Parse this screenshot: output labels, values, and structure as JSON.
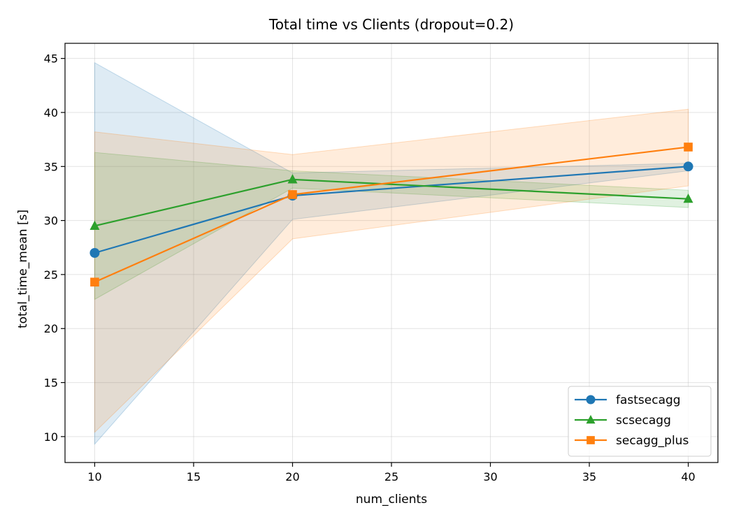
{
  "chart_data": {
    "type": "line",
    "title": "Total time vs Clients (dropout=0.2)",
    "xlabel": "num_clients",
    "ylabel": "total_time_mean [s]",
    "xlim": [
      8.5,
      41.5
    ],
    "ylim": [
      7.6,
      46.4
    ],
    "xticks": [
      10,
      15,
      20,
      25,
      30,
      35,
      40
    ],
    "yticks": [
      10,
      15,
      20,
      25,
      30,
      35,
      40,
      45
    ],
    "grid": true,
    "legend_position": "lower-right",
    "x": [
      10,
      20,
      40
    ],
    "series": [
      {
        "name": "fastsecagg",
        "color": "#1f77b4",
        "marker": "circle",
        "values": [
          27.0,
          32.3,
          35.0
        ],
        "band_lower": [
          9.3,
          30.1,
          34.6
        ],
        "band_upper": [
          44.6,
          34.4,
          35.3
        ]
      },
      {
        "name": "scsecagg",
        "color": "#2ca02c",
        "marker": "triangle",
        "values": [
          29.5,
          33.8,
          32.0
        ],
        "band_lower": [
          22.7,
          33.0,
          31.2
        ],
        "band_upper": [
          36.3,
          34.6,
          32.8
        ]
      },
      {
        "name": "secagg_plus",
        "color": "#ff7f0e",
        "marker": "square",
        "values": [
          24.3,
          32.4,
          36.8
        ],
        "band_lower": [
          10.4,
          28.3,
          33.2
        ],
        "band_upper": [
          38.2,
          36.1,
          40.3
        ]
      }
    ]
  }
}
